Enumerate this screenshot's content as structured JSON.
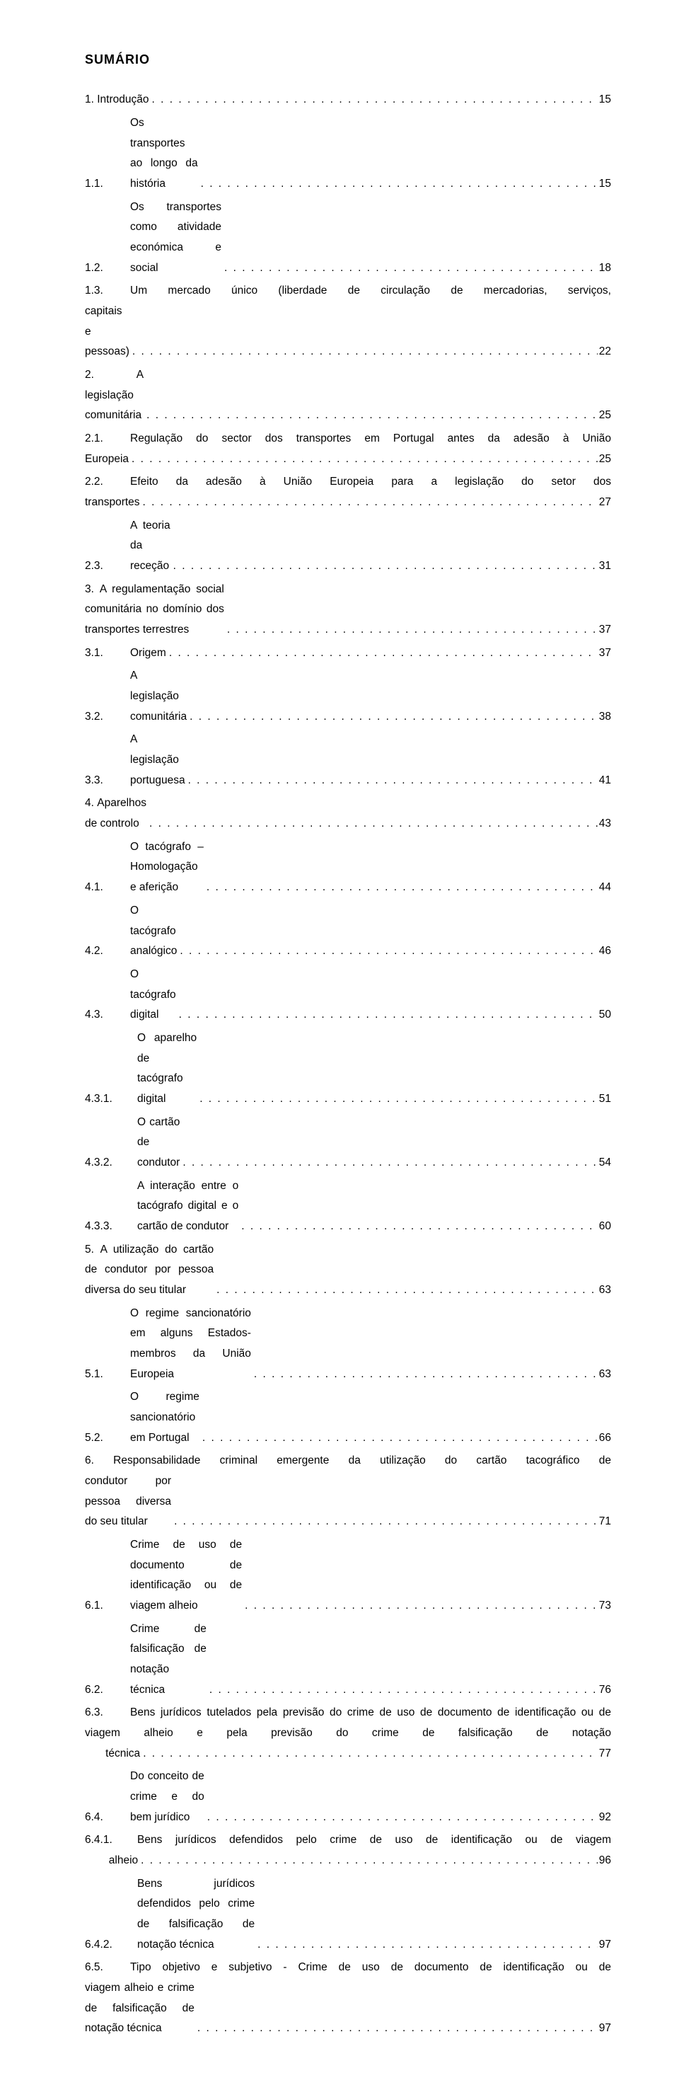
{
  "title": "SUMÁRIO",
  "entries": [
    {
      "level": 1,
      "num": "1.",
      "text": "Introdução",
      "page": "15",
      "inline_num": true
    },
    {
      "level": 2,
      "num": "1.1.",
      "text": "Os transportes ao longo da história",
      "page": "15"
    },
    {
      "level": 2,
      "num": "1.2.",
      "text": "Os transportes como atividade económica e social",
      "page": "18"
    },
    {
      "level": 2,
      "num": "1.3.",
      "text_pre": "Um mercado único (liberdade de circulação de mercadorias, serviços,",
      "text_last": "capitais e pessoas)",
      "page": "22",
      "multiline": true
    },
    {
      "level": 1,
      "num": "2.",
      "text": "A legislação comunitária",
      "page": "25",
      "inline_num": true
    },
    {
      "level": 2,
      "num": "2.1.",
      "text_pre": "Regulação do sector dos transportes em Portugal antes da adesão à União",
      "text_last": "Europeia",
      "page": "25",
      "multiline": true
    },
    {
      "level": 2,
      "num": "2.2.",
      "text_pre": "Efeito da adesão à União Europeia para a legislação do setor dos",
      "text_last": "transportes",
      "page": "27",
      "multiline": true
    },
    {
      "level": 2,
      "num": "2.3.",
      "text": "A teoria da receção",
      "page": "31"
    },
    {
      "level": 1,
      "num": "3.",
      "text": "A regulamentação social comunitária no domínio dos transportes terrestres",
      "page": "37",
      "inline_num": true
    },
    {
      "level": 2,
      "num": "3.1.",
      "text": "Origem",
      "page": "37"
    },
    {
      "level": 2,
      "num": "3.2.",
      "text": "A legislação comunitária",
      "page": "38"
    },
    {
      "level": 2,
      "num": "3.3.",
      "text": "A legislação portuguesa",
      "page": "41"
    },
    {
      "level": 1,
      "num": "4.",
      "text": "Aparelhos de controlo",
      "page": "43",
      "inline_num": true
    },
    {
      "level": 2,
      "num": "4.1.",
      "text": "O tacógrafo – Homologação e aferição",
      "page": "44"
    },
    {
      "level": 2,
      "num": "4.2.",
      "text": "O tacógrafo analógico",
      "page": "46"
    },
    {
      "level": 2,
      "num": "4.3.",
      "text": "O tacógrafo digital",
      "page": "50"
    },
    {
      "level": 3,
      "num": "4.3.1.",
      "text": "O aparelho de tacógrafo digital",
      "page": "51"
    },
    {
      "level": 3,
      "num": "4.3.2.",
      "text": "O cartão de condutor",
      "page": "54"
    },
    {
      "level": 3,
      "num": "4.3.3.",
      "text": "A interação entre o tacógrafo digital e o cartão de condutor",
      "page": "60"
    },
    {
      "level": 1,
      "num": "5.",
      "text": "A utilização do cartão de condutor por pessoa diversa do seu titular",
      "page": "63",
      "inline_num": true
    },
    {
      "level": 2,
      "num": "5.1.",
      "text": "O regime sancionatório em alguns Estados-membros da União Europeia",
      "page": "63"
    },
    {
      "level": 2,
      "num": "5.2.",
      "text": "O regime sancionatório em Portugal",
      "page": "66"
    },
    {
      "level": 1,
      "num": "6.",
      "text_pre": "Responsabilidade criminal emergente da utilização do cartão tacográfico de",
      "text_last": "condutor por pessoa diversa do seu titular",
      "page": "71",
      "multiline": true,
      "inline_num": true
    },
    {
      "level": 2,
      "num": "6.1.",
      "text": "Crime de uso de documento de identificação ou de viagem alheio",
      "page": "73"
    },
    {
      "level": 2,
      "num": "6.2.",
      "text": "Crime de falsificação de notação técnica",
      "page": "76"
    },
    {
      "level": 2,
      "num": "6.3.",
      "text_pre": "Bens jurídicos tutelados pela previsão do crime de uso de documento de identificação ou de viagem alheio e pela previsão do crime de falsificação de notação",
      "text_last": "técnica",
      "page": "77",
      "multiline": true,
      "wide_last": true
    },
    {
      "level": 2,
      "num": "6.4.",
      "text": "Do conceito de crime e do bem jurídico",
      "page": "92"
    },
    {
      "level": 3,
      "num": "6.4.1.",
      "text_pre": "Bens jurídicos defendidos pelo crime de uso de identificação ou de viagem",
      "text_last": "alheio",
      "page": "96",
      "multiline": true,
      "wide_last": true
    },
    {
      "level": 3,
      "num": "6.4.2.",
      "text": "Bens jurídicos defendidos pelo crime de falsificação de notação técnica",
      "page": "97"
    },
    {
      "level": 2,
      "num": "6.5.",
      "text_pre": "Tipo objetivo e subjetivo - Crime de uso de documento de identificação ou de",
      "text_last": "viagem alheio e crime de falsificação de notação técnica",
      "page": "97",
      "multiline": true
    }
  ]
}
